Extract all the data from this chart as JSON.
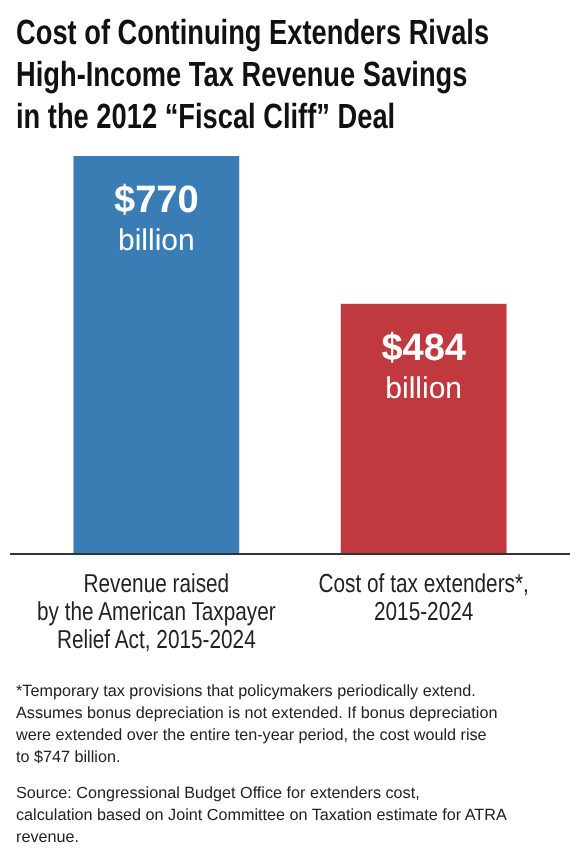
{
  "chart_data": {
    "type": "bar",
    "title": "Cost of Continuing Extenders Rivals\nHigh-Income Tax Revenue Savings\nin the 2012 “Fiscal Cliff” Deal",
    "categories": [
      "Revenue raised\nby the American Taxpayer\nRelief Act, 2015-2024",
      "Cost of tax extenders*,\n2015-2024"
    ],
    "values": [
      770,
      484
    ],
    "colors": [
      "#3a7db5",
      "#c0393f"
    ],
    "value_labels": [
      "$770 billion",
      "$484 billion"
    ],
    "tick_labels": "x",
    "annotations": [
      "*Temporary tax provisions that policymakers periodically extend. Assumes bonus depreciation is not extended. If bonus depreciation were extended over the entire ten-year period, the cost would rise to $747 billion.",
      "Source: Congressional Budget Office for extenders cost, calculation based on Joint Committee on Taxation estimate for ATRA revenue."
    ]
  }
}
